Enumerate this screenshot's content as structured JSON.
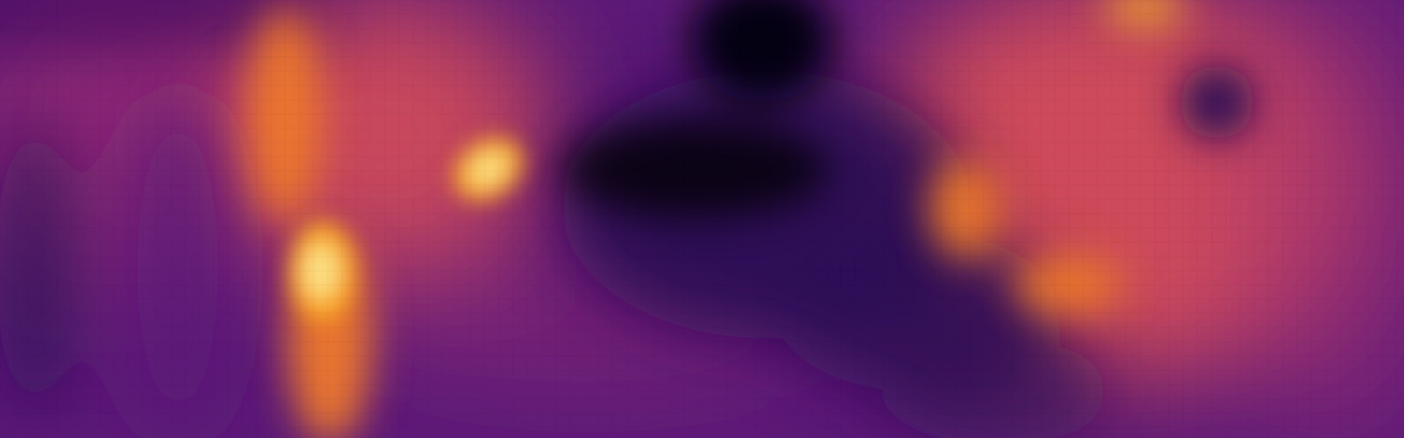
{
  "image": {
    "kind": "dense-depth-heatmap",
    "colormap": "inferno",
    "legend_visible": false,
    "text_visible": false
  },
  "colors": {
    "background": "#2a0a5e",
    "base_purple": "#5c1a78",
    "dark_violet": "#2c0a55",
    "deep_black": "#050208",
    "mid_magenta": "#9c2f73",
    "coral": "#d44e5a",
    "orange": "#f07a2a",
    "amber": "#fbad23",
    "pale_yellow": "#fbe48a"
  }
}
